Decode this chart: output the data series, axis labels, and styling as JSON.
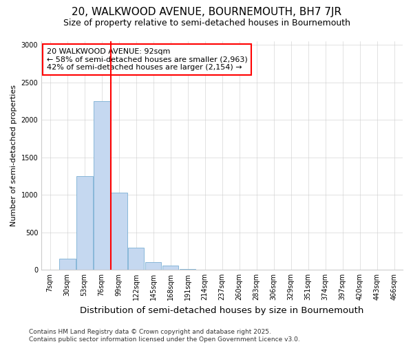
{
  "title": "20, WALKWOOD AVENUE, BOURNEMOUTH, BH7 7JR",
  "subtitle": "Size of property relative to semi-detached houses in Bournemouth",
  "xlabel": "Distribution of semi-detached houses by size in Bournemouth",
  "ylabel": "Number of semi-detached properties",
  "categories": [
    "7sqm",
    "30sqm",
    "53sqm",
    "76sqm",
    "99sqm",
    "122sqm",
    "145sqm",
    "168sqm",
    "191sqm",
    "214sqm",
    "237sqm",
    "260sqm",
    "283sqm",
    "306sqm",
    "329sqm",
    "351sqm",
    "374sqm",
    "397sqm",
    "420sqm",
    "443sqm",
    "466sqm"
  ],
  "values": [
    0,
    150,
    1250,
    2250,
    1025,
    290,
    100,
    50,
    10,
    0,
    0,
    0,
    0,
    0,
    0,
    0,
    0,
    0,
    0,
    0,
    0
  ],
  "bar_color": "#c5d8f0",
  "bar_edge_color": "#7aafd4",
  "vline_color": "red",
  "vline_x_index": 4,
  "annotation_text": "20 WALKWOOD AVENUE: 92sqm\n← 58% of semi-detached houses are smaller (2,963)\n42% of semi-detached houses are larger (2,154) →",
  "annotation_box_color": "white",
  "annotation_box_edge_color": "red",
  "ylim": [
    0,
    3050
  ],
  "yticks": [
    0,
    500,
    1000,
    1500,
    2000,
    2500,
    3000
  ],
  "footnote": "Contains HM Land Registry data © Crown copyright and database right 2025.\nContains public sector information licensed under the Open Government Licence v3.0.",
  "background_color": "white",
  "plot_bg_color": "white",
  "title_fontsize": 11,
  "subtitle_fontsize": 9,
  "xlabel_fontsize": 9.5,
  "ylabel_fontsize": 8,
  "tick_fontsize": 7,
  "annotation_fontsize": 8,
  "footnote_fontsize": 6.5
}
